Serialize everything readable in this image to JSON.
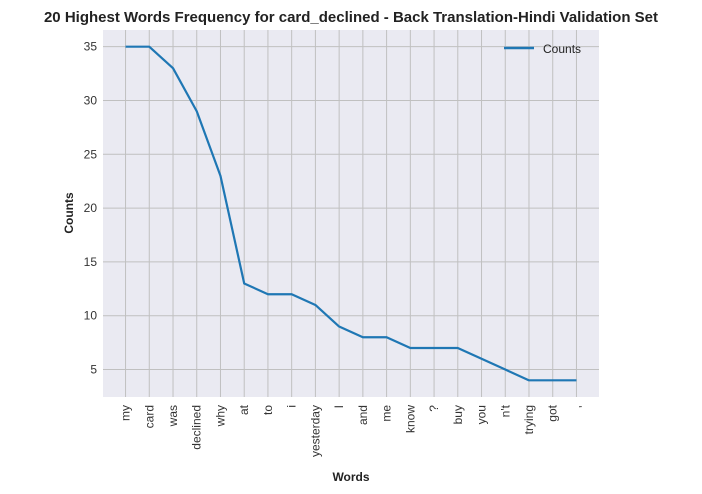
{
  "chart_data": {
    "type": "line",
    "title": "20 Highest Words Frequency for card_declined - Back Translation-Hindi Validation Set",
    "xlabel": "Words",
    "ylabel": "Counts",
    "categories": [
      "my",
      "card",
      "was",
      "declined",
      "why",
      "at",
      "to",
      "i",
      "yesterday",
      "I",
      "and",
      "me",
      "know",
      "?",
      "buy",
      "you",
      "n't",
      "trying",
      "got",
      ","
    ],
    "series": [
      {
        "name": "Counts",
        "values": [
          35,
          35,
          33,
          29,
          23,
          13,
          12,
          12,
          11,
          9,
          8,
          8,
          7,
          7,
          7,
          6,
          5,
          4,
          4,
          4
        ],
        "color": "#1f77b4"
      }
    ],
    "ylim": [
      2.45,
      36.55
    ],
    "yticks": [
      5,
      10,
      15,
      20,
      25,
      30,
      35
    ],
    "grid": true,
    "legend_position": "top-right",
    "background_color": "#eaeaf2",
    "grid_color": "#c0c0c0"
  }
}
